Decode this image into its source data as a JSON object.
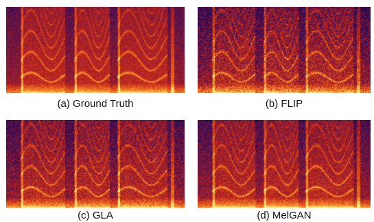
{
  "figure": {
    "panels": [
      {
        "caption": "(a) Ground Truth",
        "noise_level": 0.0,
        "colormap": "inferno-like"
      },
      {
        "caption": "(b) FLIP",
        "noise_level": 0.35,
        "colormap": "inferno-like"
      },
      {
        "caption": "(c) GLA",
        "noise_level": 0.2,
        "colormap": "inferno-like"
      },
      {
        "caption": "(d) MelGAN",
        "noise_level": 0.12,
        "colormap": "inferno-like"
      }
    ],
    "colors": {
      "low": "#2a0a5a",
      "mid": "#c4241c",
      "high": "#ffe87a"
    }
  }
}
